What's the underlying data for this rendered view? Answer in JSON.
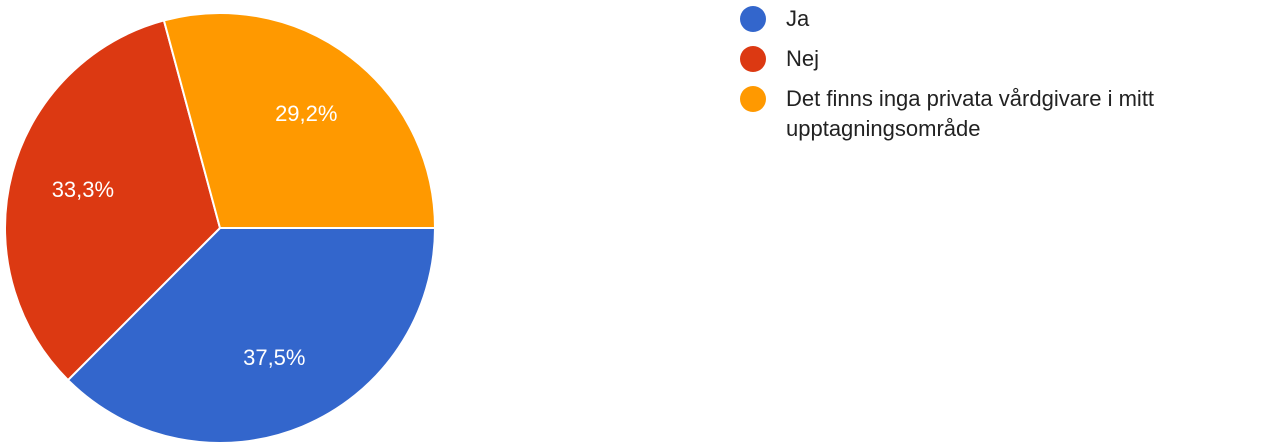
{
  "chart_data": {
    "type": "pie",
    "categories": [
      "Ja",
      "Nej",
      "Det finns inga privata vårdgivare i mitt upptagningsområde"
    ],
    "values": [
      37.5,
      33.3,
      29.2
    ],
    "value_labels": [
      "37,5%",
      "33,3%",
      "29,2%"
    ],
    "colors": [
      "#3366cc",
      "#dc3912",
      "#ff9900"
    ],
    "legend": "right"
  }
}
